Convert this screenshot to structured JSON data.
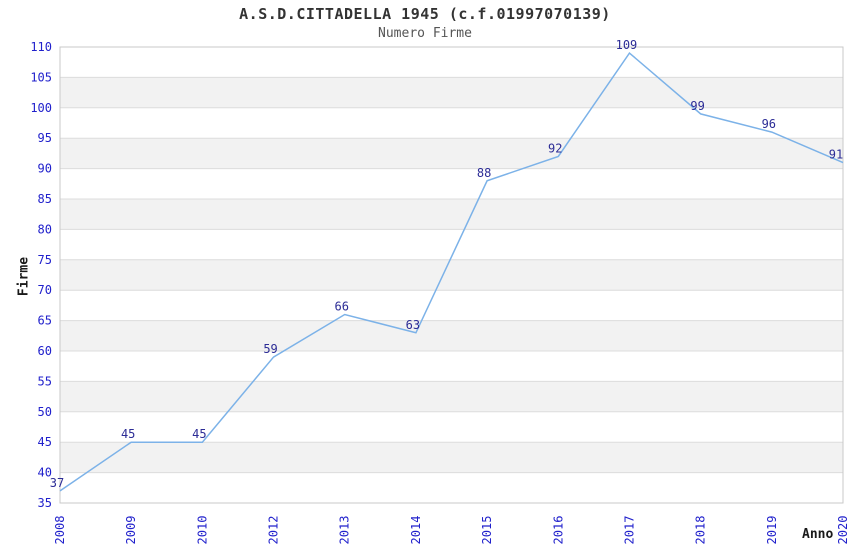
{
  "header": {
    "title": "A.S.D.CITTADELLA 1945 (c.f.01997070139)",
    "subtitle": "Numero Firme"
  },
  "chart_data": {
    "type": "line",
    "title": "A.S.D.CITTADELLA 1945 (c.f.01997070139)",
    "subtitle": "Numero Firme",
    "xlabel": "Anno",
    "ylabel": "Firme",
    "categories": [
      "2008",
      "2009",
      "2010",
      "2012",
      "2013",
      "2014",
      "2015",
      "2016",
      "2017",
      "2018",
      "2019",
      "2020"
    ],
    "series": [
      {
        "name": "Numero Firme",
        "values": [
          37,
          45,
          45,
          59,
          66,
          63,
          88,
          92,
          109,
          99,
          96,
          91
        ]
      }
    ],
    "data_labels_shown": true,
    "ylim": [
      35,
      110
    ],
    "ytick_step": 5,
    "grid": "horizontal-bands",
    "legend": "none",
    "colors": {
      "line": "#7cb2e8",
      "tick_label": "#2121cc",
      "data_label": "#2c2c96",
      "band_fill": "#f2f2f2",
      "gridline": "#dcdcdc",
      "plot_border": "#c9c9c9",
      "title": "#333333",
      "subtitle": "#555555",
      "axis_title": "#1a1a1a",
      "background": "#ffffff"
    }
  }
}
